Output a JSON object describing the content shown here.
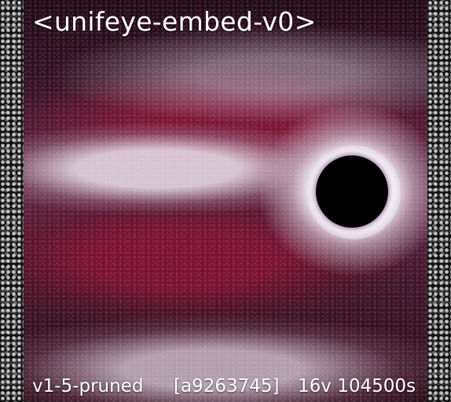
{
  "title": "<unifeye-embed-v0>",
  "footer": {
    "version": "v1-5-pruned",
    "hash": "[a9263745]",
    "info": "16v 104500s"
  },
  "colors": {
    "text": "#ffffff",
    "dominant": "#7a1a3e"
  }
}
